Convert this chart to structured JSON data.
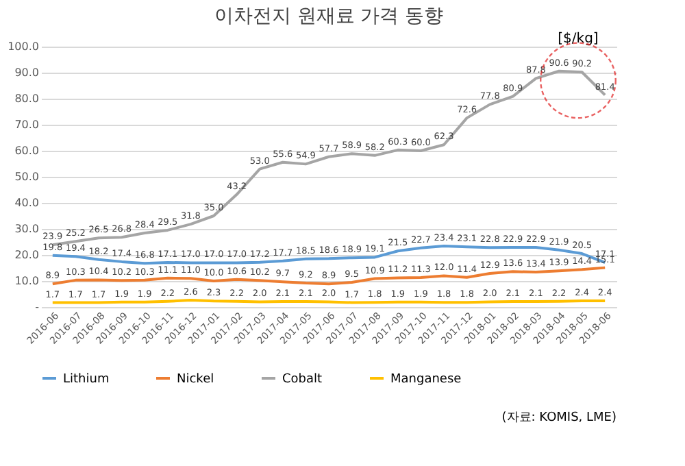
{
  "chart_data": {
    "type": "line",
    "title": "이차전지 원재료 가격 동향",
    "categories": [
      "2016-06",
      "2016-07",
      "2016-08",
      "2016-09",
      "2016-10",
      "2016-11",
      "2016-12",
      "2017-01",
      "2017-02",
      "2017-03",
      "2017-04",
      "2017-05",
      "2017-06",
      "2017-07",
      "2017-08",
      "2017-09",
      "2017-10",
      "2017-11",
      "2017-12",
      "2018-01",
      "2018-02",
      "2018-03",
      "2018-04",
      "2018-05",
      "2018-06"
    ],
    "series": [
      {
        "name": "Lithium",
        "color": "#5b9bd5",
        "values": [
          19.8,
          19.4,
          18.2,
          17.4,
          16.8,
          17.1,
          17.0,
          17.0,
          17.0,
          17.2,
          17.7,
          18.5,
          18.6,
          18.9,
          19.1,
          21.5,
          22.7,
          23.4,
          23.1,
          22.8,
          22.9,
          22.9,
          21.9,
          20.5,
          17.1
        ],
        "value_labels": [
          "19.8",
          "19.4",
          "18.2",
          "17.4",
          "16.8",
          "17.1",
          "17.0",
          "17.0",
          "17.0",
          "17.2",
          "17.7",
          "18.5",
          "18.6",
          "18.9",
          "19.1",
          "21.5",
          "22.7",
          "23.4",
          "23.1",
          "22.8",
          "22.9",
          "22.9",
          "21.9",
          "20.5",
          "17.1"
        ]
      },
      {
        "name": "Nickel",
        "color": "#ed7d31",
        "values": [
          8.9,
          10.3,
          10.4,
          10.2,
          10.3,
          11.1,
          11.0,
          10.0,
          10.6,
          10.2,
          9.7,
          9.2,
          8.9,
          9.5,
          10.9,
          11.2,
          11.3,
          12.0,
          11.4,
          12.9,
          13.6,
          13.4,
          13.9,
          14.4,
          15.1
        ],
        "value_labels": [
          "8.9",
          "10.3",
          "10.4",
          "10.2",
          "10.3",
          "11.1",
          "11.0",
          "10.0",
          "10.6",
          "10.2",
          "9.7",
          "9.2",
          "8.9",
          "9.5",
          "10.9",
          "11.2",
          "11.3",
          "12.0",
          "11.4",
          "12.9",
          "13.6",
          "13.4",
          "13.9",
          "14.4",
          "15.1"
        ]
      },
      {
        "name": "Cobalt",
        "color": "#a5a5a5",
        "values": [
          23.9,
          25.2,
          26.5,
          26.8,
          28.4,
          29.5,
          31.8,
          35.0,
          43.2,
          53.0,
          55.6,
          54.9,
          57.7,
          58.9,
          58.2,
          60.3,
          60.0,
          62.3,
          72.6,
          77.8,
          80.9,
          87.8,
          90.6,
          90.2,
          81.4
        ],
        "value_labels": [
          "23.9",
          "25.2",
          "26.5",
          "26.8",
          "28.4",
          "29.5",
          "31.8",
          "35.0",
          "43.2",
          "53.0",
          "55.6",
          "54.9",
          "57.7",
          "58.9",
          "58.2",
          "60.3",
          "60.0",
          "62.3",
          "72.6",
          "77.8",
          "80.9",
          "87.8",
          "90.6",
          "90.2",
          "81.4"
        ]
      },
      {
        "name": "Manganese",
        "color": "#ffc000",
        "values": [
          1.7,
          1.7,
          1.7,
          1.9,
          1.9,
          2.2,
          2.6,
          2.3,
          2.2,
          2.0,
          2.1,
          2.1,
          2.0,
          1.7,
          1.8,
          1.9,
          1.9,
          1.8,
          1.8,
          2.0,
          2.1,
          2.1,
          2.2,
          2.4,
          2.4
        ],
        "value_labels": [
          "1.7",
          "1.7",
          "1.7",
          "1.9",
          "1.9",
          "2.2",
          "2.6",
          "2.3",
          "2.2",
          "2.0",
          "2.1",
          "2.1",
          "2.0",
          "1.7",
          "1.8",
          "1.9",
          "1.9",
          "1.8",
          "1.8",
          "2.0",
          "2.1",
          "2.1",
          "2.2",
          "2.4",
          "2.4"
        ]
      }
    ],
    "ylim": [
      0,
      100
    ],
    "yticks": [
      {
        "value": 0,
        "label": "-"
      },
      {
        "value": 10,
        "label": "10.0"
      },
      {
        "value": 20,
        "label": "20.0"
      },
      {
        "value": 30,
        "label": "30.0"
      },
      {
        "value": 40,
        "label": "40.0"
      },
      {
        "value": 50,
        "label": "50.0"
      },
      {
        "value": 60,
        "label": "60.0"
      },
      {
        "value": 70,
        "label": "70.0"
      },
      {
        "value": 80,
        "label": "80.0"
      },
      {
        "value": 90,
        "label": "90.0"
      },
      {
        "value": 100,
        "label": "100.0"
      }
    ],
    "grid": "y",
    "legend": "bottom",
    "data_labels": true,
    "marker": "none",
    "line_style": "solid",
    "annotations": [
      "[$/kg]",
      "(자료: KOMIS, LME)"
    ]
  }
}
